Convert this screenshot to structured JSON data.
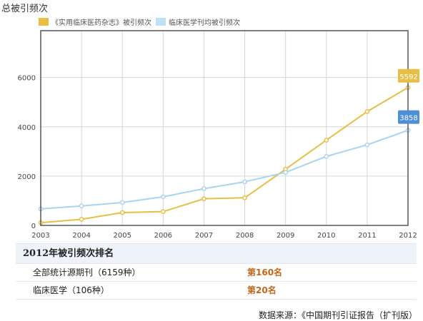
{
  "page": {
    "title": "总被引频次"
  },
  "chart_data": {
    "type": "line",
    "x": [
      "2003",
      "2004",
      "2005",
      "2006",
      "2007",
      "2008",
      "2009",
      "2010",
      "2011",
      "2012"
    ],
    "yticks": [
      "0",
      "2000",
      "4000",
      "6000"
    ],
    "ylim": [
      0,
      7900
    ],
    "grid": true,
    "legend_position": "top-left",
    "series": [
      {
        "name": "《实用临床医药杂志》被引频次",
        "color": "#e8be45",
        "values": [
          110,
          250,
          520,
          560,
          1080,
          1120,
          2280,
          3460,
          4620,
          5592
        ],
        "end_label": "5592"
      },
      {
        "name": "临床医学刊均被引频次",
        "color": "#a9d4f0",
        "label_color": "#4d8fd6",
        "values": [
          670,
          790,
          930,
          1160,
          1490,
          1770,
          2150,
          2800,
          3270,
          3858
        ],
        "end_label": "3858"
      }
    ]
  },
  "ranking": {
    "title": "2012年被引频次排名",
    "rows": [
      {
        "name": "全部统计源期刊（6159种）",
        "value": "第160名"
      },
      {
        "name": "临床医学（106种）",
        "value": "第20名"
      }
    ]
  },
  "source": "数据来源：《中国期刊引证报告（扩刊版）"
}
